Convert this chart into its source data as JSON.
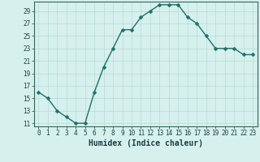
{
  "x": [
    0,
    1,
    2,
    3,
    4,
    5,
    6,
    7,
    8,
    9,
    10,
    11,
    12,
    13,
    14,
    15,
    16,
    17,
    18,
    19,
    20,
    21,
    22,
    23
  ],
  "y": [
    16,
    15,
    13,
    12,
    11,
    11,
    16,
    20,
    23,
    26,
    26,
    28,
    29,
    30,
    30,
    30,
    28,
    27,
    25,
    23,
    23,
    23,
    22,
    22
  ],
  "line_color": "#1f7068",
  "marker_color": "#1f7068",
  "bg_color": "#d6f0ee",
  "grid_color": "#b8dbd8",
  "xlabel": "Humidex (Indice chaleur)",
  "xlim": [
    -0.5,
    23.5
  ],
  "ylim": [
    10.5,
    30.5
  ],
  "yticks": [
    11,
    13,
    15,
    17,
    19,
    21,
    23,
    25,
    27,
    29
  ],
  "xticks": [
    0,
    1,
    2,
    3,
    4,
    5,
    6,
    7,
    8,
    9,
    10,
    11,
    12,
    13,
    14,
    15,
    16,
    17,
    18,
    19,
    20,
    21,
    22,
    23
  ],
  "font_color": "#1a4040",
  "tick_fontsize": 5.5,
  "xlabel_fontsize": 7,
  "line_width": 1.0,
  "marker_size": 2.5,
  "spine_color": "#336655"
}
